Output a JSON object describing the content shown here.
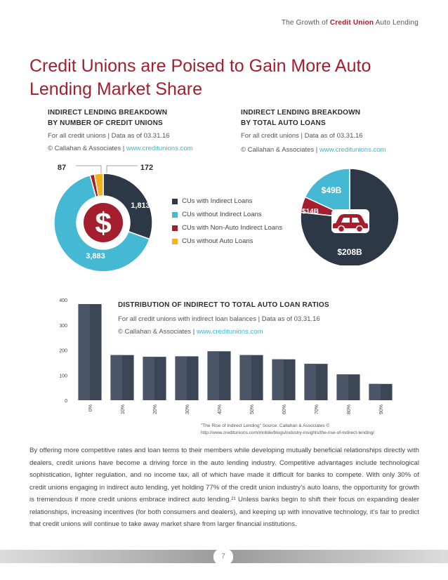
{
  "header": {
    "title_pre": "The Growth of ",
    "title_accent": "Credit Union",
    "title_post": " Auto Lending"
  },
  "page_title": "Credit Unions are Poised to Gain More Auto Lending Market Share",
  "left_section": {
    "title_line1": "INDIRECT LENDING BREAKDOWN",
    "title_line2": "BY NUMBER OF CREDIT UNIONS",
    "sub1": "For all credit unions | Data as of 03.31.16",
    "copyright": "© Callahan & Associates | ",
    "link": "www.creditunions.com"
  },
  "right_section": {
    "title_line1": "INDIRECT LENDING BREAKDOWN",
    "title_line2": "BY TOTAL AUTO LOANS",
    "sub1": "For all credit unions | Data as of 03.31.16",
    "copyright": "© Callahan & Associates | ",
    "link": "www.creditunions.com"
  },
  "legend": [
    {
      "label": "CUs with Indirect Loans",
      "color": "#2c3846"
    },
    {
      "label": "CUs without Indirect Loans",
      "color": "#45b8d3"
    },
    {
      "label": "CUs with Non-Auto Indirect Loans",
      "color": "#a51e2d"
    },
    {
      "label": "CUs without Auto Loans",
      "color": "#f3b11b"
    }
  ],
  "icons": {
    "donut_center": "dollar-icon",
    "pie_center": "car-icon"
  },
  "bar_section": {
    "title": "DISTRIBUTION OF INDIRECT TO TOTAL AUTO LOAN RATIOS",
    "sub1": "For all credit unions with indirect loan balances | Data as of 03.31.16",
    "copyright": "© Callahan & Associates | ",
    "link": "www.creditunions.com"
  },
  "caption_line1": "\"The Rise of Indirect Lending\" Source: Callahan & Associates ©",
  "caption_line2": "http://www.creditunions.com/mobile/blogs/industry-insights/the-rise-of-indirect-lending/",
  "body_text": "By offering more competitive rates and loan terms to their members while developing mutually beneficial relationships directly with dealers, credit unions have become a driving force in the auto lending industry. Competitive advantages include technological sophistication, lighter regulation, and no income tax, all of which have made it difficult for banks to compete. With only 30% of credit unions engaging in indirect auto lending, yet holding 77% of the credit union industry’s auto loans, the opportunity for growth is tremendous if more credit unions embrace indirect auto lending.²¹ Unless banks begin to shift their focus on expanding dealer relationships, increasing incentives (for both consumers and dealers), and keeping up with innovative technology, it’s fair to predict that credit unions will continue to take away market share from larger financial institutions.",
  "page_number": "7",
  "chart_data": [
    {
      "type": "pie",
      "donut": true,
      "categories": [
        "CUs with Indirect Loans",
        "CUs without Indirect Loans",
        "CUs with Non-Auto Indirect Loans",
        "CUs without Auto Loans"
      ],
      "values": [
        1813,
        3883,
        87,
        172
      ],
      "labels": [
        "1,813",
        "3,883",
        "87",
        "172"
      ],
      "colors": [
        "#2c3846",
        "#45b8d3",
        "#a51e2d",
        "#f3b11b"
      ]
    },
    {
      "type": "pie",
      "donut": false,
      "categories": [
        "CUs with Indirect Loans",
        "CUs with Non-Auto Indirect Loans",
        "CUs without Indirect Loans"
      ],
      "values": [
        208,
        14,
        49
      ],
      "labels": [
        "$208B",
        "$14B",
        "$49B"
      ],
      "colors": [
        "#2c3846",
        "#a51e2d",
        "#45b8d3"
      ]
    },
    {
      "type": "bar",
      "categories": [
        "0%",
        "10%",
        "20%",
        "30%",
        "40%",
        "50%",
        "60%",
        "70%",
        "80%",
        "90%"
      ],
      "values": [
        383,
        180,
        173,
        175,
        195,
        180,
        163,
        145,
        103,
        65
      ],
      "ylim": [
        0,
        400
      ],
      "yticks": [
        "0",
        "100",
        "200",
        "300",
        "400"
      ],
      "color": "#3a4656",
      "grid": false
    }
  ]
}
